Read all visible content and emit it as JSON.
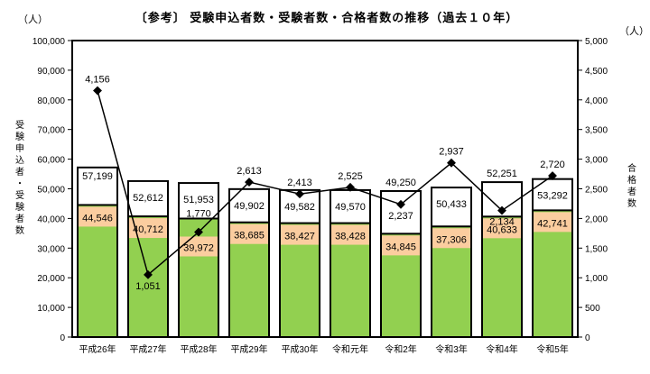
{
  "chart_data": {
    "type": "bar",
    "title": "〔参考〕 受験申込者数・受験者数・合格者数の推移（過去１０年）",
    "left_unit": "（人）",
    "right_unit": "（人）",
    "ylabel_left": "受験申込者・受験者数",
    "ylabel_right": "合格者数",
    "ylim_left": [
      0,
      100000
    ],
    "ylim_right": [
      0,
      5000
    ],
    "left_ticks": [
      "0",
      "10,000",
      "20,000",
      "30,000",
      "40,000",
      "50,000",
      "60,000",
      "70,000",
      "80,000",
      "90,000",
      "100,000"
    ],
    "right_ticks": [
      "0",
      "500",
      "1,000",
      "1,500",
      "2,000",
      "2,500",
      "3,000",
      "3,500",
      "4,000",
      "4,500",
      "5,000"
    ],
    "categories": [
      "平成26年",
      "平成27年",
      "平成28年",
      "平成29年",
      "平成30年",
      "令和元年",
      "令和2年",
      "令和3年",
      "令和4年",
      "令和5年"
    ],
    "series": [
      {
        "type": "bar",
        "values": [
          57199,
          52612,
          51953,
          49902,
          49582,
          49570,
          49250,
          50433,
          52251,
          53292
        ],
        "labels": [
          "57,199",
          "52,612",
          "51,953",
          "49,902",
          "49,582",
          "49,570",
          "49,250",
          "50,433",
          "52,251",
          "53,292"
        ],
        "color": "#ffffff"
      },
      {
        "type": "bar",
        "values": [
          44546,
          40712,
          39972,
          38685,
          38427,
          38428,
          34845,
          37306,
          40633,
          42741
        ],
        "labels": [
          "44,546",
          "40,712",
          "39,972",
          "38,685",
          "38,427",
          "38,428",
          "34,845",
          "37,306",
          "40,633",
          "42,741"
        ],
        "color": "#92d050",
        "label_bg": "#fbcd9f"
      },
      {
        "type": "line",
        "axis": "right",
        "values": [
          4156,
          1051,
          1770,
          2613,
          2413,
          2525,
          2237,
          2937,
          2134,
          2720
        ],
        "labels": [
          "4,156",
          "1,051",
          "1,770",
          "2,613",
          "2,413",
          "2,525",
          "2,237",
          "2,937",
          "2,134",
          "2,720"
        ],
        "color": "#000000"
      }
    ],
    "grid": false
  }
}
